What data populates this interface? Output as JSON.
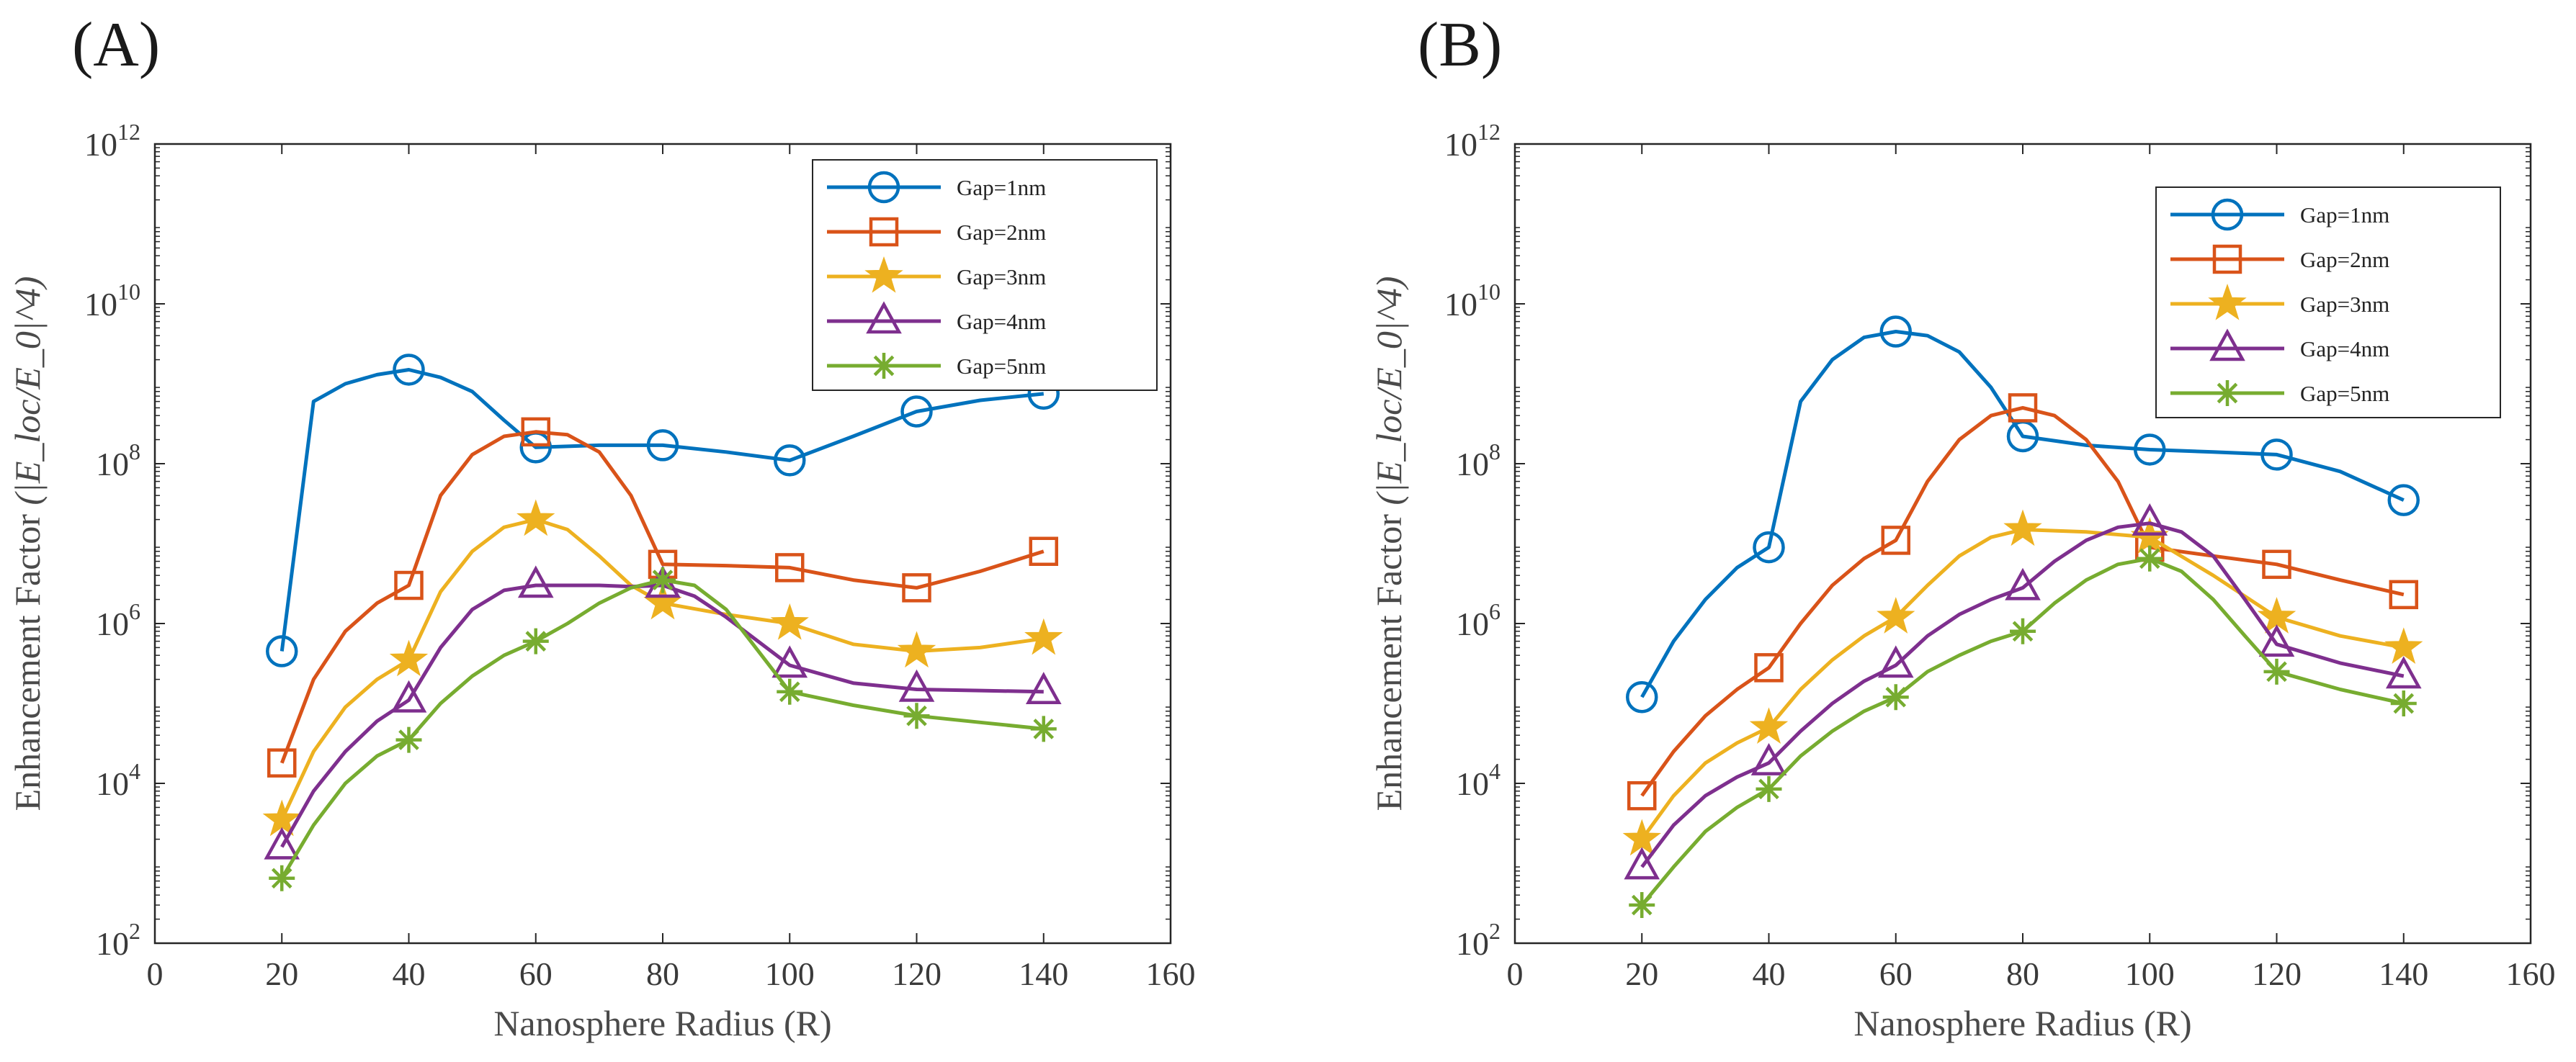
{
  "panels": [
    {
      "label": "(A)"
    },
    {
      "label": "(B)"
    }
  ],
  "chart_data": [
    {
      "type": "line",
      "panel": "(A)",
      "xlabel": "Nanosphere Radius (R)",
      "ylabel": "Enhancement Factor",
      "ylabel_math": "(|E_loc/E_0|^4)",
      "yscale": "log",
      "xlim": [
        0,
        160
      ],
      "ylim": [
        100,
        1000000000000
      ],
      "xticks": [
        "0",
        "20",
        "40",
        "60",
        "80",
        "100",
        "120",
        "140",
        "160"
      ],
      "yticks": [
        {
          "value": 100,
          "base": "10",
          "exp": "2"
        },
        {
          "value": 10000,
          "base": "10",
          "exp": "4"
        },
        {
          "value": 1000000,
          "base": "10",
          "exp": "6"
        },
        {
          "value": 100000000,
          "base": "10",
          "exp": "8"
        },
        {
          "value": 10000000000,
          "base": "10",
          "exp": "10"
        },
        {
          "value": 1000000000000,
          "base": "10",
          "exp": "12"
        }
      ],
      "legend_position": "top-right",
      "x": [
        20,
        40,
        60,
        80,
        100,
        120,
        140
      ],
      "series": [
        {
          "name": "Gap=1nm",
          "color": "#0072BD",
          "marker": "circle",
          "values": [
            450000,
            1500000000,
            160000000,
            170000000,
            110000000,
            450000000,
            750000000
          ],
          "curve": [
            [
              20,
              450000
            ],
            [
              22,
              8000000
            ],
            [
              25,
              600000000
            ],
            [
              30,
              1000000000
            ],
            [
              35,
              1300000000
            ],
            [
              40,
              1500000000
            ],
            [
              45,
              1200000000
            ],
            [
              50,
              800000000
            ],
            [
              55,
              350000000
            ],
            [
              60,
              160000000
            ],
            [
              70,
              170000000
            ],
            [
              80,
              170000000
            ],
            [
              90,
              140000000
            ],
            [
              100,
              110000000
            ],
            [
              110,
              220000000
            ],
            [
              120,
              450000000
            ],
            [
              130,
              620000000
            ],
            [
              140,
              750000000
            ]
          ]
        },
        {
          "name": "Gap=2nm",
          "color": "#D95319",
          "marker": "square",
          "values": [
            18000,
            3000000,
            250000000,
            5500000,
            5000000,
            2800000,
            8000000
          ],
          "curve": [
            [
              20,
              18000
            ],
            [
              25,
              200000
            ],
            [
              30,
              800000
            ],
            [
              35,
              1800000
            ],
            [
              40,
              3000000
            ],
            [
              45,
              40000000
            ],
            [
              50,
              130000000
            ],
            [
              55,
              220000000
            ],
            [
              60,
              250000000
            ],
            [
              65,
              230000000
            ],
            [
              70,
              140000000
            ],
            [
              75,
              40000000
            ],
            [
              80,
              5500000
            ],
            [
              90,
              5300000
            ],
            [
              100,
              5000000
            ],
            [
              110,
              3500000
            ],
            [
              120,
              2800000
            ],
            [
              130,
              4500000
            ],
            [
              140,
              8000000
            ]
          ]
        },
        {
          "name": "Gap=3nm",
          "color": "#EDB120",
          "marker": "star",
          "values": [
            3500,
            350000,
            20000000,
            1800000,
            1000000,
            450000,
            650000
          ],
          "curve": [
            [
              20,
              3500
            ],
            [
              25,
              25000
            ],
            [
              30,
              90000
            ],
            [
              35,
              200000
            ],
            [
              40,
              350000
            ],
            [
              45,
              2500000
            ],
            [
              50,
              8000000
            ],
            [
              55,
              16000000
            ],
            [
              60,
              20000000
            ],
            [
              65,
              15000000
            ],
            [
              70,
              7000000
            ],
            [
              75,
              3000000
            ],
            [
              80,
              1800000
            ],
            [
              90,
              1300000
            ],
            [
              100,
              1000000
            ],
            [
              110,
              550000
            ],
            [
              120,
              450000
            ],
            [
              130,
              500000
            ],
            [
              140,
              650000
            ]
          ]
        },
        {
          "name": "Gap=4nm",
          "color": "#7E2F8E",
          "marker": "triangle",
          "values": [
            1600,
            110000,
            3000000,
            3000000,
            300000,
            150000,
            140000
          ],
          "curve": [
            [
              20,
              1600
            ],
            [
              25,
              8000
            ],
            [
              30,
              25000
            ],
            [
              35,
              60000
            ],
            [
              40,
              110000
            ],
            [
              45,
              500000
            ],
            [
              50,
              1500000
            ],
            [
              55,
              2600000
            ],
            [
              60,
              3000000
            ],
            [
              70,
              3000000
            ],
            [
              75,
              2900000
            ],
            [
              80,
              3000000
            ],
            [
              85,
              2200000
            ],
            [
              90,
              1200000
            ],
            [
              100,
              300000
            ],
            [
              110,
              180000
            ],
            [
              120,
              150000
            ],
            [
              130,
              145000
            ],
            [
              140,
              140000
            ]
          ]
        },
        {
          "name": "Gap=5nm",
          "color": "#77AC30",
          "marker": "asterisk",
          "values": [
            650,
            35000,
            600000,
            3500000,
            140000,
            70000,
            48000
          ],
          "curve": [
            [
              20,
              650
            ],
            [
              25,
              3000
            ],
            [
              30,
              10000
            ],
            [
              35,
              22000
            ],
            [
              40,
              35000
            ],
            [
              45,
              100000
            ],
            [
              50,
              220000
            ],
            [
              55,
              400000
            ],
            [
              60,
              600000
            ],
            [
              65,
              1000000
            ],
            [
              70,
              1800000
            ],
            [
              75,
              2800000
            ],
            [
              80,
              3500000
            ],
            [
              85,
              3000000
            ],
            [
              90,
              1500000
            ],
            [
              100,
              140000
            ],
            [
              110,
              95000
            ],
            [
              120,
              70000
            ],
            [
              130,
              58000
            ],
            [
              140,
              48000
            ]
          ]
        }
      ]
    },
    {
      "type": "line",
      "panel": "(B)",
      "xlabel": "Nanosphere Radius (R)",
      "ylabel": "Enhancement Factor",
      "ylabel_math": "(|E_loc/E_0|^4)",
      "yscale": "log",
      "xlim": [
        0,
        160
      ],
      "ylim": [
        100,
        1000000000000
      ],
      "xticks": [
        "0",
        "20",
        "40",
        "60",
        "80",
        "100",
        "120",
        "140",
        "160"
      ],
      "yticks": [
        {
          "value": 100,
          "base": "10",
          "exp": "2"
        },
        {
          "value": 10000,
          "base": "10",
          "exp": "4"
        },
        {
          "value": 1000000,
          "base": "10",
          "exp": "6"
        },
        {
          "value": 100000000,
          "base": "10",
          "exp": "8"
        },
        {
          "value": 10000000000,
          "base": "10",
          "exp": "10"
        },
        {
          "value": 1000000000000,
          "base": "10",
          "exp": "12"
        }
      ],
      "legend_position": "top-right",
      "x": [
        20,
        40,
        60,
        80,
        100,
        120,
        140
      ],
      "series": [
        {
          "name": "Gap=1nm",
          "color": "#0072BD",
          "marker": "circle",
          "values": [
            120000,
            9000000,
            4500000000,
            220000000,
            150000000,
            130000000,
            35000000
          ],
          "curve": [
            [
              20,
              120000
            ],
            [
              25,
              600000
            ],
            [
              30,
              2000000
            ],
            [
              35,
              5000000
            ],
            [
              40,
              9000000
            ],
            [
              45,
              600000000
            ],
            [
              50,
              2000000000
            ],
            [
              55,
              3800000000
            ],
            [
              60,
              4500000000
            ],
            [
              65,
              4000000000
            ],
            [
              70,
              2500000000
            ],
            [
              75,
              900000000
            ],
            [
              80,
              220000000
            ],
            [
              90,
              170000000
            ],
            [
              100,
              150000000
            ],
            [
              110,
              140000000
            ],
            [
              120,
              130000000
            ],
            [
              130,
              80000000
            ],
            [
              140,
              35000000
            ]
          ]
        },
        {
          "name": "Gap=2nm",
          "color": "#D95319",
          "marker": "square",
          "values": [
            7000,
            280000,
            11000000,
            500000000,
            9000000,
            5500000,
            2300000
          ],
          "curve": [
            [
              20,
              7000
            ],
            [
              25,
              25000
            ],
            [
              30,
              70000
            ],
            [
              35,
              150000
            ],
            [
              40,
              280000
            ],
            [
              45,
              1000000
            ],
            [
              50,
              3000000
            ],
            [
              55,
              6500000
            ],
            [
              60,
              11000000
            ],
            [
              65,
              60000000
            ],
            [
              70,
              200000000
            ],
            [
              75,
              400000000
            ],
            [
              80,
              500000000
            ],
            [
              85,
              400000000
            ],
            [
              90,
              200000000
            ],
            [
              95,
              60000000
            ],
            [
              100,
              9000000
            ],
            [
              110,
              7000000
            ],
            [
              120,
              5500000
            ],
            [
              130,
              3500000
            ],
            [
              140,
              2300000
            ]
          ]
        },
        {
          "name": "Gap=3nm",
          "color": "#EDB120",
          "marker": "star",
          "values": [
            2000,
            50000,
            1200000,
            15000000,
            12000000,
            1200000,
            500000
          ],
          "curve": [
            [
              20,
              2000
            ],
            [
              25,
              7000
            ],
            [
              30,
              18000
            ],
            [
              35,
              32000
            ],
            [
              40,
              50000
            ],
            [
              45,
              150000
            ],
            [
              50,
              350000
            ],
            [
              55,
              700000
            ],
            [
              60,
              1200000
            ],
            [
              65,
              3000000
            ],
            [
              70,
              7000000
            ],
            [
              75,
              12000000
            ],
            [
              80,
              15000000
            ],
            [
              90,
              14000000
            ],
            [
              100,
              12000000
            ],
            [
              110,
              4000000
            ],
            [
              120,
              1200000
            ],
            [
              130,
              700000
            ],
            [
              140,
              500000
            ]
          ]
        },
        {
          "name": "Gap=4nm",
          "color": "#7E2F8E",
          "marker": "triangle",
          "values": [
            900,
            18000,
            300000,
            2800000,
            18000000,
            550000,
            220000
          ],
          "curve": [
            [
              20,
              900
            ],
            [
              25,
              3000
            ],
            [
              30,
              7000
            ],
            [
              35,
              12000
            ],
            [
              40,
              18000
            ],
            [
              45,
              45000
            ],
            [
              50,
              100000
            ],
            [
              55,
              190000
            ],
            [
              60,
              300000
            ],
            [
              65,
              700000
            ],
            [
              70,
              1300000
            ],
            [
              75,
              2000000
            ],
            [
              80,
              2800000
            ],
            [
              85,
              6000000
            ],
            [
              90,
              11000000
            ],
            [
              95,
              16000000
            ],
            [
              100,
              18000000
            ],
            [
              105,
              14000000
            ],
            [
              110,
              7000000
            ],
            [
              115,
              2000000
            ],
            [
              120,
              550000
            ],
            [
              130,
              320000
            ],
            [
              140,
              220000
            ]
          ]
        },
        {
          "name": "Gap=5nm",
          "color": "#77AC30",
          "marker": "asterisk",
          "values": [
            300,
            8500,
            120000,
            800000,
            6500000,
            250000,
            100000
          ],
          "curve": [
            [
              20,
              300
            ],
            [
              25,
              900
            ],
            [
              30,
              2500
            ],
            [
              35,
              5000
            ],
            [
              40,
              8500
            ],
            [
              45,
              22000
            ],
            [
              50,
              45000
            ],
            [
              55,
              80000
            ],
            [
              60,
              120000
            ],
            [
              65,
              250000
            ],
            [
              70,
              400000
            ],
            [
              75,
              600000
            ],
            [
              80,
              800000
            ],
            [
              85,
              1800000
            ],
            [
              90,
              3500000
            ],
            [
              95,
              5500000
            ],
            [
              100,
              6500000
            ],
            [
              105,
              4500000
            ],
            [
              110,
              2000000
            ],
            [
              115,
              700000
            ],
            [
              120,
              250000
            ],
            [
              130,
              150000
            ],
            [
              140,
              100000
            ]
          ]
        }
      ]
    }
  ]
}
